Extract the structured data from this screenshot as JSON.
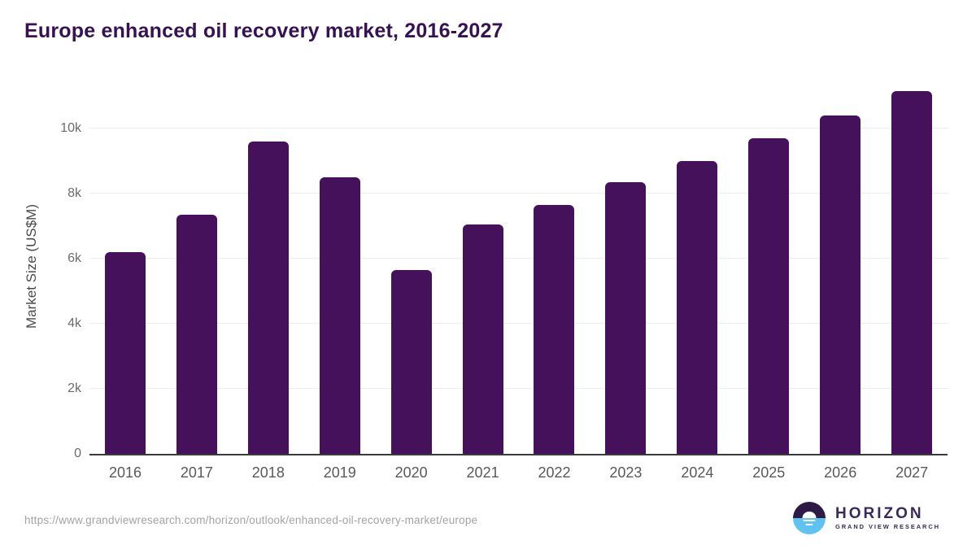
{
  "title": "Europe enhanced oil recovery market, 2016-2027",
  "colors": {
    "bar": "#45115a",
    "title": "#371253",
    "grid": "#ececec",
    "axis": "#3a3a3a",
    "tick_label": "#6b6b6b",
    "x_label": "#58595b",
    "url": "#a3a3a3",
    "logo_dark": "#2e1a47",
    "logo_blue": "#5ec3f0",
    "logo_text": "#392a5a"
  },
  "chart_data": {
    "type": "bar",
    "title": "Europe enhanced oil recovery market, 2016-2027",
    "categories": [
      "2016",
      "2017",
      "2018",
      "2019",
      "2020",
      "2021",
      "2022",
      "2023",
      "2024",
      "2025",
      "2026",
      "2027"
    ],
    "values": [
      6200,
      7350,
      9600,
      8500,
      5650,
      7050,
      7650,
      8350,
      9000,
      9700,
      10400,
      11150
    ],
    "xlabel": "",
    "ylabel": "Market Size (US$M)",
    "ylim": [
      0,
      11500
    ],
    "yticks": [
      {
        "value": 0,
        "label": "0"
      },
      {
        "value": 2000,
        "label": "2k"
      },
      {
        "value": 4000,
        "label": "4k"
      },
      {
        "value": 6000,
        "label": "6k"
      },
      {
        "value": 8000,
        "label": "8k"
      },
      {
        "value": 10000,
        "label": "10k"
      }
    ],
    "grid": true,
    "legend": false,
    "bar_color": "#45115a"
  },
  "footer": {
    "source_url": "https://www.grandviewresearch.com/horizon/outlook/enhanced-oil-recovery-market/europe",
    "logo": {
      "name": "HORIZON",
      "subtitle": "GRAND VIEW RESEARCH"
    }
  }
}
